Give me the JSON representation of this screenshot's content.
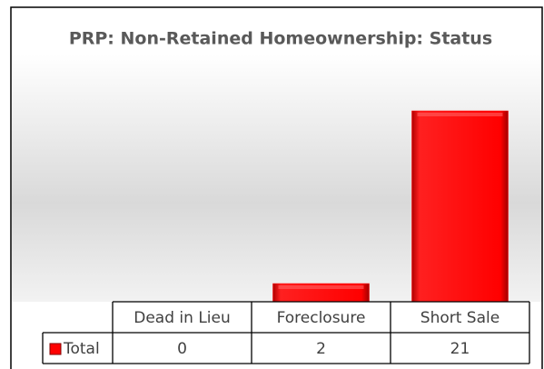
{
  "chart_data": {
    "type": "bar",
    "title": "PRP: Non-Retained Homeownership: Status",
    "categories": [
      "Dead in Lieu",
      "Foreclosure",
      "Short Sale"
    ],
    "series": [
      {
        "name": "Total",
        "color": "#ff0000",
        "values": [
          0,
          2,
          21
        ]
      }
    ],
    "data_table": true
  }
}
